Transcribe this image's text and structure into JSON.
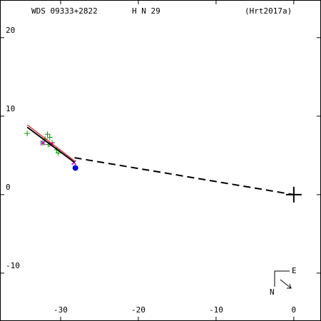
{
  "chart_data": {
    "type": "scatter",
    "header": {
      "left": "WDS 09333+2822",
      "center": "H N  29",
      "right": "(Hrt2017a)"
    },
    "compass": {
      "east": "E",
      "north": "N"
    },
    "xlim": [
      -37.8,
      3.5
    ],
    "ylim": [
      -16.1,
      24.8
    ],
    "xticks": [
      -30,
      -20,
      -10,
      0
    ],
    "yticks": [
      -10,
      0,
      10,
      20
    ],
    "series": [
      {
        "color": "#00a000",
        "marker": "plus",
        "x": [
          -34.3,
          -31.7,
          -32.0,
          -32.3,
          -31.6,
          -31.1,
          -30.5,
          -30.3,
          -31.4
        ],
        "y": [
          7.8,
          7.7,
          7.1,
          6.6,
          6.4,
          6.6,
          5.7,
          5.3,
          7.3
        ]
      },
      {
        "color": "#e000e0",
        "marker": "cross",
        "x": [
          -32.3,
          -31.2,
          -28.3
        ],
        "y": [
          6.6,
          6.4,
          4.1
        ]
      },
      {
        "color": "#000000",
        "marker": "line",
        "x": [
          -34.3,
          -28.2
        ],
        "y": [
          8.6,
          4.1
        ]
      },
      {
        "color": "#e00000",
        "marker": "thinline",
        "x": [
          -34.3,
          -28.2
        ],
        "y": [
          8.9,
          4.3
        ]
      },
      {
        "color": "#000000",
        "marker": "dash",
        "x": [
          -28.2,
          0
        ],
        "y": [
          4.7,
          0
        ]
      },
      {
        "color": "#0000e0",
        "marker": "dot",
        "x": [
          -28.1
        ],
        "y": [
          3.4
        ]
      },
      {
        "color": "#000000",
        "marker": "bigplus",
        "x": [
          0
        ],
        "y": [
          0
        ]
      }
    ]
  }
}
